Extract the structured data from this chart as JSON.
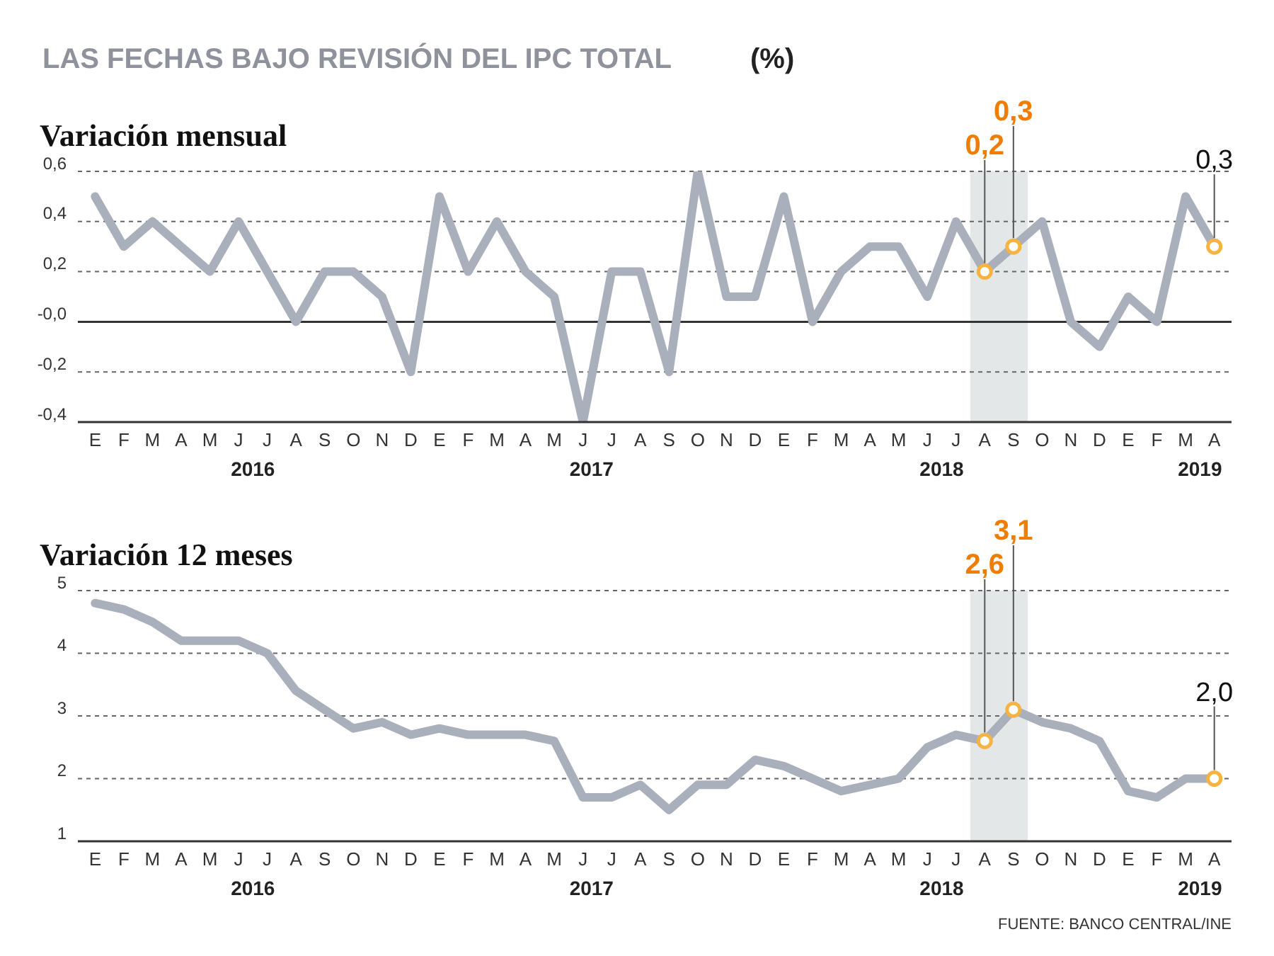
{
  "chart_data": [
    {
      "type": "line",
      "title": "Variación mensual",
      "annotations": [
        "LAS FECHAS BAJO REVISIÓN DEL IPC TOTAL",
        "(%)",
        "2016",
        "2017",
        "2018",
        "2019",
        {
          "text": "0,2",
          "y": 0.2
        },
        {
          "text": "0,3",
          "y": 0.3
        },
        {
          "text": "0,3",
          "y": 0.3
        }
      ],
      "categories": [
        "E",
        "F",
        "M",
        "A",
        "M",
        "J",
        "J",
        "A",
        "S",
        "O",
        "N",
        "D",
        "E",
        "F",
        "M",
        "A",
        "M",
        "J",
        "J",
        "A",
        "S",
        "O",
        "N",
        "D",
        "E",
        "F",
        "M",
        "A",
        "M",
        "J",
        "J",
        "A",
        "S",
        "O",
        "N",
        "D",
        "E",
        "F",
        "M",
        "A"
      ],
      "series": [
        {
          "color": "#a9afbb",
          "values": [
            0.5,
            0.3,
            0.4,
            0.3,
            0.2,
            0.4,
            0.2,
            0,
            0.2,
            0.2,
            0.1,
            -0.2,
            0.5,
            0.2,
            0.4,
            0.2,
            0.1,
            -0.4,
            0.2,
            0.2,
            -0.2,
            0.6,
            0.1,
            0.1,
            0.5,
            0,
            0.2,
            0.3,
            0.3,
            0.1,
            0.4,
            0.2,
            0.3,
            0.4,
            0,
            -0.1,
            0.1,
            0,
            0.5,
            0.3
          ]
        },
        {
          "type": "scatter",
          "marker": "circle",
          "color": "#f5b342",
          "values": [
            null,
            null,
            null,
            null,
            null,
            null,
            null,
            null,
            null,
            null,
            null,
            null,
            null,
            null,
            null,
            null,
            null,
            null,
            null,
            null,
            null,
            null,
            null,
            null,
            null,
            null,
            null,
            null,
            null,
            null,
            null,
            0.2,
            0.3,
            null,
            null,
            null,
            null,
            null,
            null,
            null
          ]
        },
        {
          "type": "scatter",
          "marker": "circle",
          "color": "#f5b342",
          "values": [
            null,
            null,
            null,
            null,
            null,
            null,
            null,
            null,
            null,
            null,
            null,
            null,
            null,
            null,
            null,
            null,
            null,
            null,
            null,
            null,
            null,
            null,
            null,
            null,
            null,
            null,
            null,
            null,
            null,
            null,
            null,
            null,
            null,
            null,
            null,
            null,
            null,
            null,
            null,
            0.3
          ]
        }
      ],
      "ylim": [
        -0.4,
        0.6
      ],
      "yticks": [
        {
          "value": -0.4,
          "label": "-0,4"
        },
        {
          "value": -0.2,
          "label": "-0,2"
        },
        {
          "value": 0,
          "label": "-0,0"
        },
        {
          "value": 0.2,
          "label": "0,2"
        },
        {
          "value": 0.4,
          "label": "0,4"
        },
        {
          "value": 0.6,
          "label": "0,6"
        }
      ],
      "grid": "y",
      "marker": "none",
      "line_style": "solid",
      "ref_lines": [
        {
          "axis": "y",
          "value": 0,
          "color": "#333333"
        }
      ]
    },
    {
      "type": "line",
      "title": "Variación 12 meses",
      "annotations": [
        "2016",
        "2017",
        "2018",
        "2019",
        {
          "text": "2,6",
          "y": 2.6
        },
        {
          "text": "3,1",
          "y": 3.1
        },
        {
          "text": "2,0",
          "y": 2.0
        },
        "FUENTE: BANCO CENTRAL/INE"
      ],
      "categories": [
        "E",
        "F",
        "M",
        "A",
        "M",
        "J",
        "J",
        "A",
        "S",
        "O",
        "N",
        "D",
        "E",
        "F",
        "M",
        "A",
        "M",
        "J",
        "J",
        "A",
        "S",
        "O",
        "N",
        "D",
        "E",
        "F",
        "M",
        "A",
        "M",
        "J",
        "J",
        "A",
        "S",
        "O",
        "N",
        "D",
        "E",
        "F",
        "M",
        "A"
      ],
      "series": [
        {
          "color": "#a9afbb",
          "values": [
            4.8,
            4.7,
            4.5,
            4.2,
            4.2,
            4.2,
            4.0,
            3.4,
            3.1,
            2.8,
            2.9,
            2.7,
            2.8,
            2.7,
            2.7,
            2.7,
            2.6,
            1.7,
            1.7,
            1.9,
            1.5,
            1.9,
            1.9,
            2.3,
            2.2,
            2.0,
            1.8,
            1.9,
            2.0,
            2.5,
            2.7,
            2.6,
            3.1,
            2.9,
            2.8,
            2.6,
            1.8,
            1.7,
            2.0,
            2.0
          ]
        },
        {
          "type": "scatter",
          "marker": "circle",
          "color": "#f5b342",
          "values": [
            null,
            null,
            null,
            null,
            null,
            null,
            null,
            null,
            null,
            null,
            null,
            null,
            null,
            null,
            null,
            null,
            null,
            null,
            null,
            null,
            null,
            null,
            null,
            null,
            null,
            null,
            null,
            null,
            null,
            null,
            null,
            2.6,
            3.1,
            null,
            null,
            null,
            null,
            null,
            null,
            null
          ]
        },
        {
          "type": "scatter",
          "marker": "circle",
          "color": "#f5b342",
          "values": [
            null,
            null,
            null,
            null,
            null,
            null,
            null,
            null,
            null,
            null,
            null,
            null,
            null,
            null,
            null,
            null,
            null,
            null,
            null,
            null,
            null,
            null,
            null,
            null,
            null,
            null,
            null,
            null,
            null,
            null,
            null,
            null,
            null,
            null,
            null,
            null,
            null,
            null,
            null,
            2.0
          ]
        }
      ],
      "ylim": [
        1,
        5
      ],
      "yticks": [
        1,
        2,
        3,
        4,
        5
      ],
      "grid": "y",
      "marker": "none",
      "line_style": "solid"
    }
  ]
}
